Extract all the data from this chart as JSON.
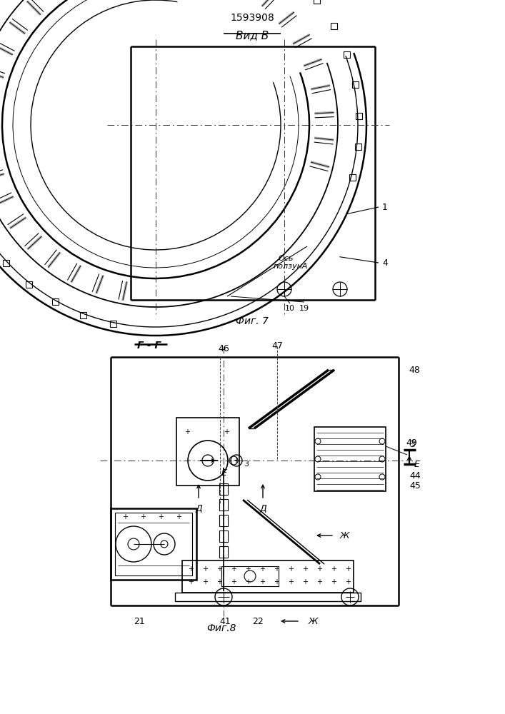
{
  "title": "1593908",
  "bg_color": "#ffffff",
  "fig7_title": "Вид В",
  "fig7_label": "Фиг. 7",
  "fig8_section": "Г - Г",
  "fig8_label": "Фиг.8",
  "line_color": "#000000",
  "line_width": 1.0,
  "thin_line": 0.5,
  "thick_line": 1.8
}
